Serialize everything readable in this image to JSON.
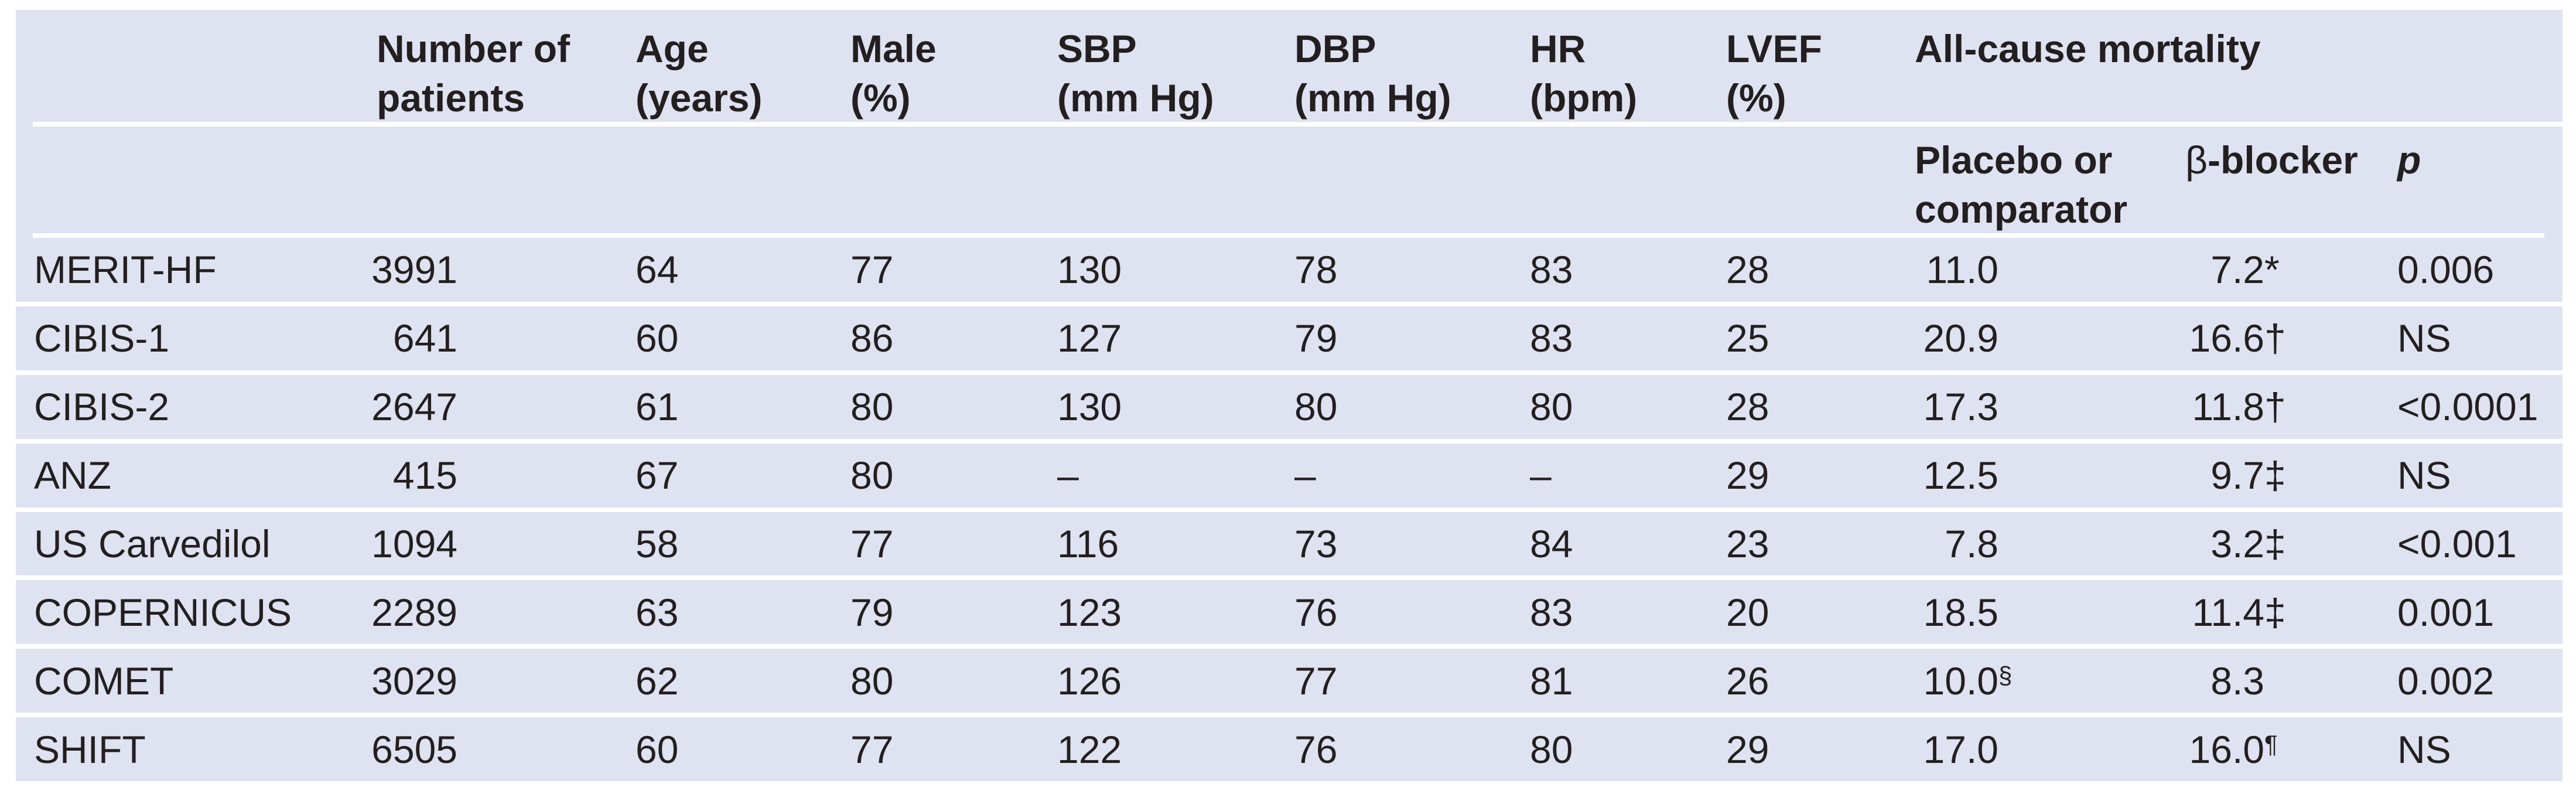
{
  "table": {
    "colors": {
      "panel_background": "#dfe2f0",
      "text": "#231f20",
      "rule": "#ffffff"
    },
    "header": {
      "patients": [
        "Number of",
        "patients"
      ],
      "age": [
        "Age",
        "(years)"
      ],
      "male": [
        "Male",
        "(%)"
      ],
      "sbp": [
        "SBP",
        "(mm Hg)"
      ],
      "dbp": [
        "DBP",
        "(mm Hg)"
      ],
      "hr": [
        "HR",
        "(bpm)"
      ],
      "lvef": [
        "LVEF",
        "(%)"
      ],
      "mortality": "All-cause mortality",
      "placebo": [
        "Placebo or",
        "comparator"
      ],
      "bblocker": {
        "symbol": "β",
        "text": "-blocker"
      },
      "p": "p"
    },
    "rows": [
      {
        "trial": "MERIT-HF",
        "n": "3991",
        "age": "64",
        "male": "77",
        "sbp": "130",
        "dbp": "78",
        "hr": "83",
        "lvef": "28",
        "placebo": "11.0",
        "placebo_sup": "",
        "bblocker": "7.2",
        "bblocker_mark": "*",
        "bblocker_sup": "",
        "p": "0.006"
      },
      {
        "trial": "CIBIS-1",
        "n": "641",
        "age": "60",
        "male": "86",
        "sbp": "127",
        "dbp": "79",
        "hr": "83",
        "lvef": "25",
        "placebo": "20.9",
        "placebo_sup": "",
        "bblocker": "16.6",
        "bblocker_mark": "†",
        "bblocker_sup": "",
        "p": "NS"
      },
      {
        "trial": "CIBIS-2",
        "n": "2647",
        "age": "61",
        "male": "80",
        "sbp": "130",
        "dbp": "80",
        "hr": "80",
        "lvef": "28",
        "placebo": "17.3",
        "placebo_sup": "",
        "bblocker": "11.8",
        "bblocker_mark": "†",
        "bblocker_sup": "",
        "p": "<0.0001"
      },
      {
        "trial": "ANZ",
        "n": "415",
        "age": "67",
        "male": "80",
        "sbp": "–",
        "dbp": "–",
        "hr": "–",
        "lvef": "29",
        "placebo": "12.5",
        "placebo_sup": "",
        "bblocker": "9.7",
        "bblocker_mark": "‡",
        "bblocker_sup": "",
        "p": "NS"
      },
      {
        "trial": "US Carvedilol",
        "n": "1094",
        "age": "58",
        "male": "77",
        "sbp": "116",
        "dbp": "73",
        "hr": "84",
        "lvef": "23",
        "placebo": "7.8",
        "placebo_sup": "",
        "bblocker": "3.2",
        "bblocker_mark": "‡",
        "bblocker_sup": "",
        "p": "<0.001"
      },
      {
        "trial": "COPERNICUS",
        "n": "2289",
        "age": "63",
        "male": "79",
        "sbp": "123",
        "dbp": "76",
        "hr": "83",
        "lvef": "20",
        "placebo": "18.5",
        "placebo_sup": "",
        "bblocker": "11.4",
        "bblocker_mark": "‡",
        "bblocker_sup": "",
        "p": "0.001"
      },
      {
        "trial": "COMET",
        "n": "3029",
        "age": "62",
        "male": "80",
        "sbp": "126",
        "dbp": "77",
        "hr": "81",
        "lvef": "26",
        "placebo": "10.0",
        "placebo_sup": "§",
        "bblocker": "8.3",
        "bblocker_mark": "",
        "bblocker_sup": "",
        "p": "0.002"
      },
      {
        "trial": "SHIFT",
        "n": "6505",
        "age": "60",
        "male": "77",
        "sbp": "122",
        "dbp": "76",
        "hr": "80",
        "lvef": "29",
        "placebo": "17.0",
        "placebo_sup": "",
        "bblocker": "16.0",
        "bblocker_mark": "",
        "bblocker_sup": "¶",
        "p": "NS"
      }
    ]
  }
}
